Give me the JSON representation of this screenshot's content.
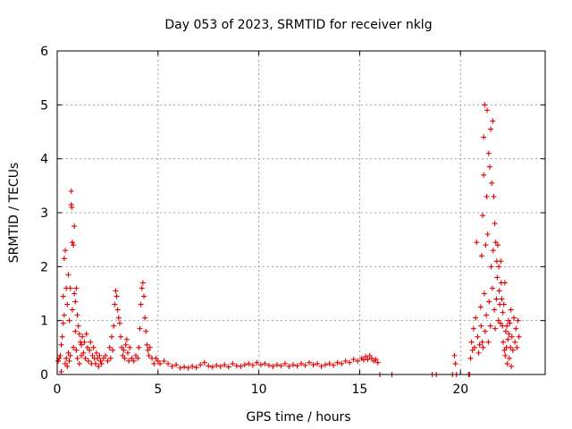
{
  "chart_data": {
    "type": "scatter",
    "title": "Day 053 of 2023, SRMTID for receiver nklg",
    "xlabel": "GPS time / hours",
    "ylabel": "SRMTID / TECUs",
    "xlim": [
      0,
      24.2
    ],
    "ylim": [
      0,
      6
    ],
    "xticks": [
      0,
      5,
      10,
      15,
      20
    ],
    "yticks": [
      0,
      1,
      2,
      3,
      4,
      5,
      6
    ],
    "grid": true,
    "marker": "plus",
    "color": "#e00000",
    "series": [
      {
        "name": "SRMTID",
        "points": [
          [
            0.05,
            0.25
          ],
          [
            0.1,
            0.3
          ],
          [
            0.15,
            0.35
          ],
          [
            0.2,
            0.05
          ],
          [
            0.2,
            0.55
          ],
          [
            0.25,
            0.7
          ],
          [
            0.3,
            0.95
          ],
          [
            0.3,
            1.45
          ],
          [
            0.35,
            1.1
          ],
          [
            0.35,
            2.15
          ],
          [
            0.4,
            2.3
          ],
          [
            0.4,
            0.2
          ],
          [
            0.45,
            1.6
          ],
          [
            0.45,
            0.3
          ],
          [
            0.5,
            1.3
          ],
          [
            0.5,
            0.15
          ],
          [
            0.55,
            1.85
          ],
          [
            0.55,
            0.4
          ],
          [
            0.6,
            1.0
          ],
          [
            0.6,
            0.25
          ],
          [
            0.65,
            1.6
          ],
          [
            0.65,
            0.35
          ],
          [
            0.7,
            3.4
          ],
          [
            0.7,
            3.15
          ],
          [
            0.72,
            3.1
          ],
          [
            0.75,
            2.45
          ],
          [
            0.75,
            1.2
          ],
          [
            0.8,
            2.4
          ],
          [
            0.8,
            0.5
          ],
          [
            0.85,
            2.75
          ],
          [
            0.85,
            1.5
          ],
          [
            0.9,
            1.35
          ],
          [
            0.9,
            0.8
          ],
          [
            0.95,
            1.6
          ],
          [
            0.95,
            0.45
          ],
          [
            1.0,
            1.1
          ],
          [
            1.0,
            0.3
          ],
          [
            1.05,
            0.9
          ],
          [
            1.1,
            0.75
          ],
          [
            1.1,
            0.2
          ],
          [
            1.15,
            0.6
          ],
          [
            1.2,
            0.55
          ],
          [
            1.2,
            0.35
          ],
          [
            1.25,
            0.7
          ],
          [
            1.3,
            0.4
          ],
          [
            1.35,
            0.6
          ],
          [
            1.4,
            0.3
          ],
          [
            1.45,
            0.75
          ],
          [
            1.5,
            0.5
          ],
          [
            1.55,
            0.25
          ],
          [
            1.6,
            0.45
          ],
          [
            1.65,
            0.6
          ],
          [
            1.7,
            0.2
          ],
          [
            1.75,
            0.35
          ],
          [
            1.8,
            0.5
          ],
          [
            1.85,
            0.3
          ],
          [
            1.9,
            0.2
          ],
          [
            1.95,
            0.4
          ],
          [
            2.0,
            0.3
          ],
          [
            2.05,
            0.15
          ],
          [
            2.1,
            0.35
          ],
          [
            2.15,
            0.25
          ],
          [
            2.2,
            0.2
          ],
          [
            2.3,
            0.3
          ],
          [
            2.4,
            0.35
          ],
          [
            2.5,
            0.25
          ],
          [
            2.6,
            0.5
          ],
          [
            2.65,
            0.3
          ],
          [
            2.7,
            0.7
          ],
          [
            2.75,
            0.45
          ],
          [
            2.8,
            0.9
          ],
          [
            2.85,
            1.3
          ],
          [
            2.9,
            1.55
          ],
          [
            2.95,
            1.45
          ],
          [
            3.0,
            1.2
          ],
          [
            3.05,
            1.05
          ],
          [
            3.1,
            0.95
          ],
          [
            3.15,
            0.7
          ],
          [
            3.2,
            0.5
          ],
          [
            3.25,
            0.35
          ],
          [
            3.3,
            0.45
          ],
          [
            3.35,
            0.3
          ],
          [
            3.4,
            0.55
          ],
          [
            3.45,
            0.65
          ],
          [
            3.5,
            0.4
          ],
          [
            3.55,
            0.25
          ],
          [
            3.6,
            0.5
          ],
          [
            3.7,
            0.3
          ],
          [
            3.8,
            0.25
          ],
          [
            3.9,
            0.35
          ],
          [
            4.0,
            0.3
          ],
          [
            4.05,
            0.5
          ],
          [
            4.1,
            0.85
          ],
          [
            4.15,
            1.3
          ],
          [
            4.2,
            1.6
          ],
          [
            4.25,
            1.7
          ],
          [
            4.3,
            1.45
          ],
          [
            4.35,
            1.05
          ],
          [
            4.4,
            0.8
          ],
          [
            4.45,
            0.55
          ],
          [
            4.5,
            0.45
          ],
          [
            4.55,
            0.35
          ],
          [
            4.6,
            0.5
          ],
          [
            4.7,
            0.3
          ],
          [
            4.8,
            0.2
          ],
          [
            4.9,
            0.3
          ],
          [
            5.0,
            0.25
          ],
          [
            5.1,
            0.2
          ],
          [
            5.3,
            0.25
          ],
          [
            5.5,
            0.2
          ],
          [
            5.7,
            0.15
          ],
          [
            5.9,
            0.18
          ],
          [
            6.1,
            0.12
          ],
          [
            6.3,
            0.14
          ],
          [
            6.5,
            0.12
          ],
          [
            6.7,
            0.15
          ],
          [
            6.9,
            0.13
          ],
          [
            7.1,
            0.18
          ],
          [
            7.3,
            0.22
          ],
          [
            7.5,
            0.16
          ],
          [
            7.7,
            0.14
          ],
          [
            7.9,
            0.17
          ],
          [
            8.1,
            0.15
          ],
          [
            8.3,
            0.18
          ],
          [
            8.5,
            0.14
          ],
          [
            8.7,
            0.2
          ],
          [
            8.9,
            0.16
          ],
          [
            9.1,
            0.15
          ],
          [
            9.3,
            0.18
          ],
          [
            9.5,
            0.2
          ],
          [
            9.7,
            0.17
          ],
          [
            9.9,
            0.22
          ],
          [
            10.1,
            0.18
          ],
          [
            10.3,
            0.2
          ],
          [
            10.5,
            0.17
          ],
          [
            10.7,
            0.15
          ],
          [
            10.9,
            0.18
          ],
          [
            11.1,
            0.16
          ],
          [
            11.3,
            0.2
          ],
          [
            11.5,
            0.15
          ],
          [
            11.7,
            0.18
          ],
          [
            11.9,
            0.16
          ],
          [
            12.1,
            0.2
          ],
          [
            12.3,
            0.17
          ],
          [
            12.5,
            0.22
          ],
          [
            12.7,
            0.18
          ],
          [
            12.9,
            0.2
          ],
          [
            13.1,
            0.15
          ],
          [
            13.3,
            0.18
          ],
          [
            13.5,
            0.2
          ],
          [
            13.7,
            0.17
          ],
          [
            13.9,
            0.22
          ],
          [
            14.1,
            0.2
          ],
          [
            14.3,
            0.25
          ],
          [
            14.5,
            0.22
          ],
          [
            14.7,
            0.28
          ],
          [
            14.9,
            0.25
          ],
          [
            15.1,
            0.3
          ],
          [
            15.2,
            0.27
          ],
          [
            15.3,
            0.33
          ],
          [
            15.4,
            0.28
          ],
          [
            15.5,
            0.35
          ],
          [
            15.6,
            0.3
          ],
          [
            15.7,
            0.25
          ],
          [
            15.8,
            0.28
          ],
          [
            15.9,
            0.22
          ],
          [
            16.0,
            0.0
          ],
          [
            16.6,
            0.0
          ],
          [
            18.6,
            0.0
          ],
          [
            18.8,
            0.0
          ],
          [
            19.6,
            0.0
          ],
          [
            19.7,
            0.35
          ],
          [
            19.75,
            0.2
          ],
          [
            19.8,
            0.0
          ],
          [
            20.4,
            0.0
          ],
          [
            20.45,
            0.0
          ],
          [
            20.5,
            0.3
          ],
          [
            20.55,
            0.6
          ],
          [
            20.6,
            0.45
          ],
          [
            20.65,
            0.85
          ],
          [
            20.7,
            0.5
          ],
          [
            20.75,
            1.05
          ],
          [
            20.8,
            2.45
          ],
          [
            20.85,
            0.7
          ],
          [
            20.9,
            0.4
          ],
          [
            20.95,
            0.55
          ],
          [
            21.0,
            1.25
          ],
          [
            21.02,
            0.9
          ],
          [
            21.05,
            2.2
          ],
          [
            21.08,
            0.6
          ],
          [
            21.1,
            2.95
          ],
          [
            21.12,
            0.5
          ],
          [
            21.15,
            3.7
          ],
          [
            21.15,
            4.4
          ],
          [
            21.18,
            1.5
          ],
          [
            21.2,
            5.0
          ],
          [
            21.22,
            0.8
          ],
          [
            21.25,
            2.4
          ],
          [
            21.28,
            1.1
          ],
          [
            21.3,
            3.3
          ],
          [
            21.32,
            4.9
          ],
          [
            21.35,
            2.6
          ],
          [
            21.38,
            0.6
          ],
          [
            21.4,
            4.1
          ],
          [
            21.42,
            1.35
          ],
          [
            21.45,
            3.85
          ],
          [
            21.48,
            0.9
          ],
          [
            21.5,
            4.55
          ],
          [
            21.52,
            2.0
          ],
          [
            21.55,
            3.55
          ],
          [
            21.58,
            1.6
          ],
          [
            21.6,
            4.7
          ],
          [
            21.62,
            2.3
          ],
          [
            21.65,
            3.3
          ],
          [
            21.68,
            1.2
          ],
          [
            21.7,
            2.8
          ],
          [
            21.72,
            0.85
          ],
          [
            21.75,
            2.45
          ],
          [
            21.78,
            1.4
          ],
          [
            21.8,
            2.1
          ],
          [
            21.82,
            1.8
          ],
          [
            21.85,
            2.4
          ],
          [
            21.88,
            1.0
          ],
          [
            21.9,
            2.0
          ],
          [
            21.92,
            1.55
          ],
          [
            21.95,
            1.3
          ],
          [
            21.98,
            0.95
          ],
          [
            22.0,
            2.1
          ],
          [
            22.02,
            1.7
          ],
          [
            22.05,
            1.4
          ],
          [
            22.08,
            0.9
          ],
          [
            22.1,
            1.15
          ],
          [
            22.12,
            0.6
          ],
          [
            22.15,
            1.3
          ],
          [
            22.18,
            0.45
          ],
          [
            22.2,
            1.7
          ],
          [
            22.22,
            0.35
          ],
          [
            22.25,
            0.8
          ],
          [
            22.28,
            0.5
          ],
          [
            22.3,
            0.9
          ],
          [
            22.32,
            0.2
          ],
          [
            22.35,
            0.65
          ],
          [
            22.38,
            1.0
          ],
          [
            22.4,
            0.75
          ],
          [
            22.42,
            0.3
          ],
          [
            22.45,
            0.95
          ],
          [
            22.48,
            0.5
          ],
          [
            22.5,
            1.2
          ],
          [
            22.52,
            0.15
          ],
          [
            22.55,
            0.7
          ],
          [
            22.6,
            0.45
          ],
          [
            22.65,
            1.05
          ],
          [
            22.7,
            0.6
          ],
          [
            22.75,
            0.85
          ],
          [
            22.8,
            0.5
          ],
          [
            22.85,
            1.0
          ],
          [
            22.9,
            0.7
          ]
        ]
      }
    ]
  }
}
